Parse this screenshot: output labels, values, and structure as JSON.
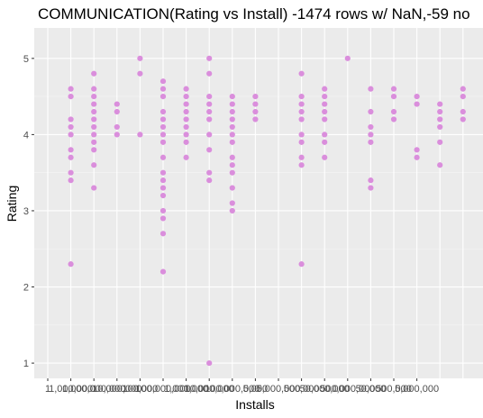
{
  "chart_data": {
    "type": "scatter",
    "title": "COMMUNICATION(Rating vs Install) -1474 rows w/ NaN,-59 no",
    "xlabel": "Installs",
    "ylabel": "Rating",
    "x_categories": [
      "1",
      "1,000,000",
      "1,000,000,000",
      "10,000,000",
      "100,000",
      "100,000,000",
      "1,000,000",
      "10,000,000",
      "100,000,000",
      "5,000",
      "5,000,000",
      "500,000",
      "50,000,000",
      "500,000,000",
      "50,000",
      "500,000",
      "5,000,000"
    ],
    "ylim": [
      0.8,
      5.4
    ],
    "y_ticks": [
      "1",
      "2",
      "3",
      "4",
      "5"
    ],
    "grid": true,
    "point_color": "#DA8EDC",
    "background_color": "#EBEBEB",
    "points": [
      {
        "x": 2,
        "y": [
          2.3,
          3.4,
          3.5,
          3.7,
          3.8,
          4.0,
          4.1,
          4.2,
          4.5,
          4.6
        ]
      },
      {
        "x": 3,
        "y": [
          3.3,
          3.6,
          3.8,
          3.9,
          4.0,
          4.1,
          4.2,
          4.3,
          4.4,
          4.5,
          4.6,
          4.8
        ]
      },
      {
        "x": 4,
        "y": [
          4.0,
          4.1,
          4.3,
          4.4
        ]
      },
      {
        "x": 5,
        "y": [
          4.0,
          4.8,
          5.0
        ]
      },
      {
        "x": 6,
        "y": [
          2.2,
          2.7,
          2.9,
          3.0,
          3.2,
          3.3,
          3.4,
          3.5,
          3.7,
          3.9,
          4.0,
          4.1,
          4.2,
          4.3,
          4.5,
          4.6,
          4.7
        ]
      },
      {
        "x": 7,
        "y": [
          3.7,
          3.9,
          4.0,
          4.1,
          4.2,
          4.3,
          4.4,
          4.5,
          4.6
        ]
      },
      {
        "x": 8,
        "y": [
          1.0,
          3.4,
          3.5,
          3.8,
          4.0,
          4.2,
          4.3,
          4.4,
          4.5,
          4.8,
          5.0
        ]
      },
      {
        "x": 9,
        "y": [
          3.0,
          3.1,
          3.3,
          3.5,
          3.6,
          3.7,
          3.9,
          4.0,
          4.1,
          4.2,
          4.3,
          4.4,
          4.5
        ]
      },
      {
        "x": 10,
        "y": [
          4.2,
          4.3,
          4.4,
          4.5
        ]
      },
      {
        "x": 12,
        "y": [
          2.3,
          3.6,
          3.7,
          3.9,
          4.0,
          4.2,
          4.3,
          4.4,
          4.5,
          4.8
        ]
      },
      {
        "x": 13,
        "y": [
          3.7,
          3.9,
          4.0,
          4.2,
          4.3,
          4.4,
          4.5,
          4.6
        ]
      },
      {
        "x": 14,
        "y": [
          5.0
        ]
      },
      {
        "x": 15,
        "y": [
          3.3,
          3.4,
          3.9,
          4.0,
          4.1,
          4.3,
          4.6
        ]
      },
      {
        "x": 16,
        "y": [
          4.2,
          4.3,
          4.5,
          4.6
        ]
      },
      {
        "x": 17,
        "y": [
          3.7,
          3.8,
          4.4,
          4.5
        ]
      },
      {
        "x": 18,
        "y": [
          3.6,
          3.9,
          4.1,
          4.2,
          4.3,
          4.4
        ]
      },
      {
        "x": 19,
        "y": [
          4.2,
          4.3,
          4.5,
          4.6
        ]
      }
    ]
  }
}
